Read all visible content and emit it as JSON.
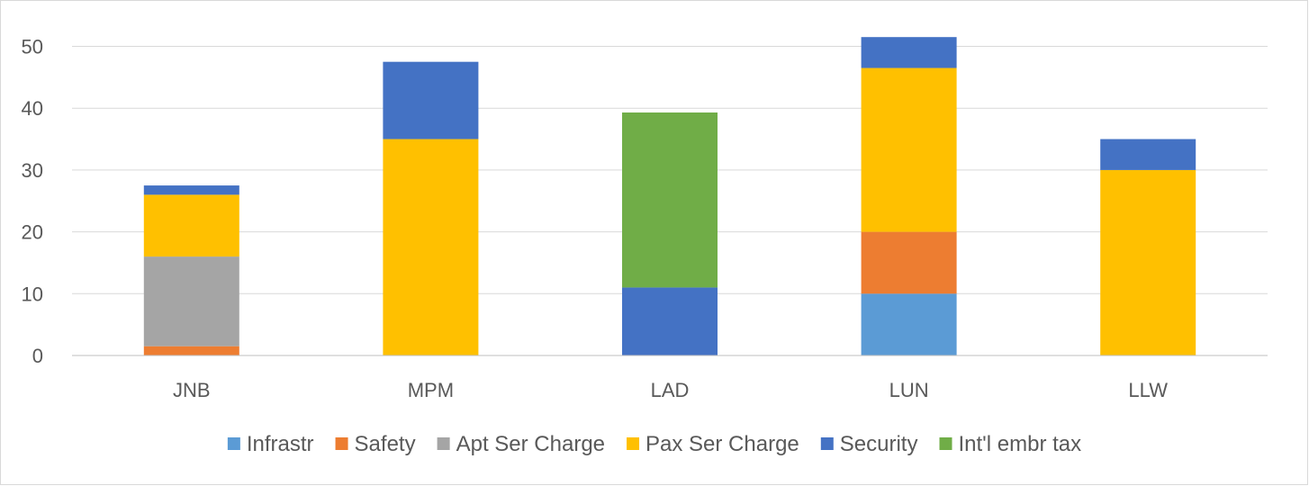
{
  "chart_data": {
    "type": "bar",
    "stacked": true,
    "categories": [
      "JNB",
      "MPM",
      "LAD",
      "LUN",
      "LLW"
    ],
    "series": [
      {
        "name": "Infrastr",
        "color": "#5b9bd5",
        "values": [
          0,
          0,
          0,
          10,
          0
        ]
      },
      {
        "name": "Safety",
        "color": "#ed7d31",
        "values": [
          1.5,
          0,
          0,
          10,
          0
        ]
      },
      {
        "name": "Apt Ser Charge",
        "color": "#a5a5a5",
        "values": [
          14.5,
          0,
          0,
          0,
          0
        ]
      },
      {
        "name": "Pax Ser Charge",
        "color": "#ffc000",
        "values": [
          10,
          35,
          0,
          26.5,
          30
        ]
      },
      {
        "name": "Security",
        "color": "#4472c4",
        "values": [
          1.5,
          12.5,
          11,
          5,
          5
        ]
      },
      {
        "name": "Int'l embr tax",
        "color": "#70ad47",
        "values": [
          0,
          0,
          28.3,
          0,
          0
        ]
      }
    ],
    "yticks": [
      0,
      10,
      20,
      30,
      40,
      50
    ],
    "ylim": [
      0,
      50
    ],
    "grid": true,
    "legend_position": "bottom"
  }
}
